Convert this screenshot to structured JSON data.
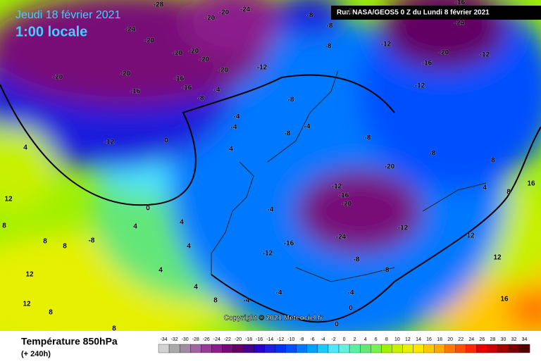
{
  "header": {
    "date": "Jeudi 18 février 2021",
    "time": "1:00 locale",
    "run": "Run NASA/GEOS5 0 Z du Lundi 8 février 2021",
    "copyright": "Copyright © 2021 Meteociel.fr"
  },
  "legend": {
    "title": "Température 850hPa",
    "lead": "(+ 240h)",
    "ticks": [
      -34,
      -32,
      -30,
      -28,
      -26,
      -24,
      -22,
      -20,
      -18,
      -16,
      -14,
      -12,
      -10,
      -8,
      -6,
      -4,
      -2,
      0,
      2,
      4,
      6,
      8,
      10,
      12,
      14,
      16,
      18,
      20,
      22,
      24,
      26,
      28,
      30,
      32,
      34
    ],
    "colors": [
      "#d2d2d2",
      "#aaaaaa",
      "#a08ca0",
      "#a064a0",
      "#963c96",
      "#8c1e8c",
      "#780a78",
      "#640064",
      "#46008c",
      "#2800c8",
      "#1e1edc",
      "#0032f0",
      "#0050ff",
      "#0078ff",
      "#00a0ff",
      "#1ec8ff",
      "#50e6ff",
      "#64f0dc",
      "#5af0a0",
      "#64e678",
      "#78f050",
      "#a0f000",
      "#c8f000",
      "#e6f000",
      "#ffe600",
      "#ffc800",
      "#ffaa00",
      "#ff7800",
      "#ff5000",
      "#ff2800",
      "#e60000",
      "#c80000",
      "#a00000",
      "#780000",
      "#500000"
    ]
  },
  "contour_labels": [
    -28,
    -24,
    -20,
    -20,
    -20,
    -24,
    -20,
    -20,
    -16,
    -20,
    -20,
    -20,
    -20,
    -16,
    -16,
    -12,
    -8,
    -4,
    -8,
    -8,
    -8,
    -8,
    -12,
    -16,
    -20,
    -12,
    -24,
    -12,
    -16,
    -8,
    -8,
    -4,
    -8,
    -8,
    -20,
    -12,
    -16,
    -20,
    -24,
    -16,
    -12,
    -12,
    -8,
    -8,
    -4,
    -4,
    -4,
    0,
    0,
    0,
    0,
    -12,
    4,
    4,
    -4,
    4,
    4,
    4,
    4,
    4,
    8,
    -8,
    8,
    8,
    12,
    8,
    12,
    12,
    8,
    8,
    12,
    16,
    16,
    8,
    4,
    8,
    12,
    -4,
    -4
  ]
}
